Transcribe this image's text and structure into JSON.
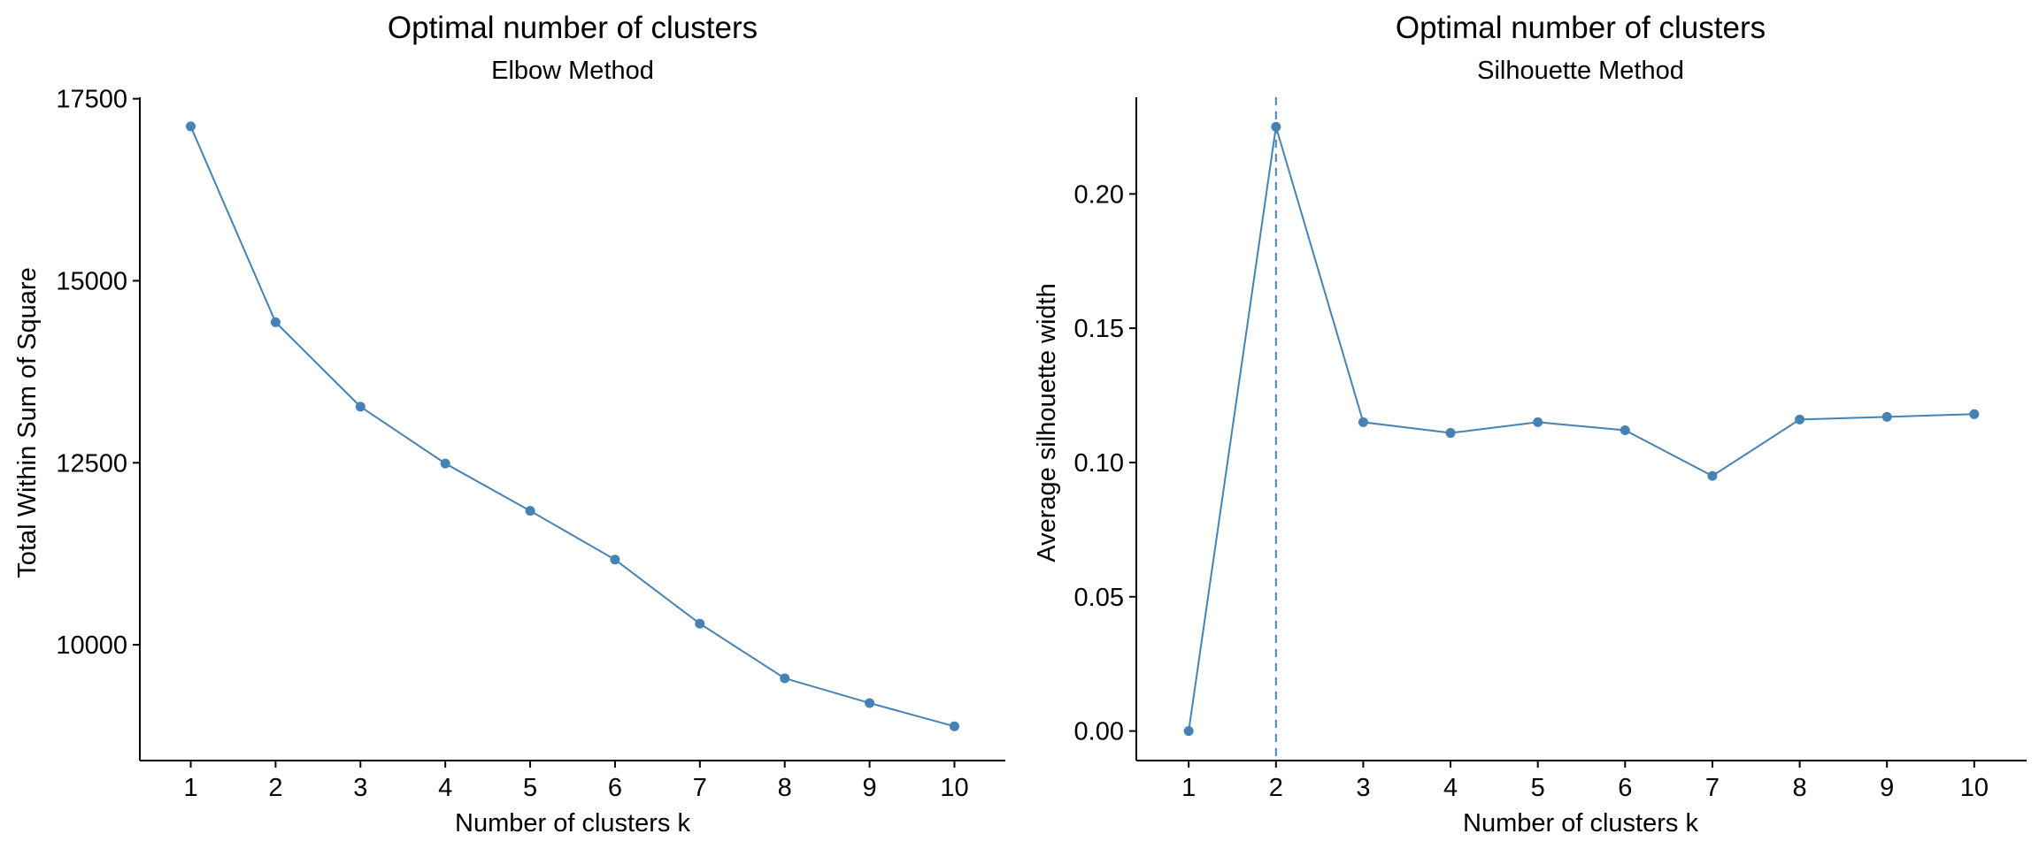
{
  "chart_data": [
    {
      "type": "line",
      "title": "Optimal number of clusters",
      "subtitle": "Elbow Method",
      "xlabel": "Number of clusters k",
      "ylabel": "Total Within Sum of Square",
      "x": [
        1,
        2,
        3,
        4,
        5,
        6,
        7,
        8,
        9,
        10
      ],
      "values": [
        17120,
        14430,
        13270,
        12490,
        11840,
        11170,
        10290,
        9540,
        9200,
        8880
      ],
      "xlim": [
        0.4,
        10.6
      ],
      "ylim": [
        8410,
        17520
      ],
      "xticks": [
        "1",
        "2",
        "3",
        "4",
        "5",
        "6",
        "7",
        "8",
        "9",
        "10"
      ],
      "yticks": [
        10000,
        12500,
        15000,
        17500
      ],
      "ytick_labels": [
        "10000",
        "12500",
        "15000",
        "17500"
      ],
      "color": "#4682B4",
      "grid": false,
      "legend": "none"
    },
    {
      "type": "line",
      "title": "Optimal number of clusters",
      "subtitle": "Silhouette Method",
      "xlabel": "Number of clusters k",
      "ylabel": "Average silhouette width",
      "x": [
        1,
        2,
        3,
        4,
        5,
        6,
        7,
        8,
        9,
        10
      ],
      "values": [
        0.0,
        0.225,
        0.115,
        0.111,
        0.115,
        0.112,
        0.095,
        0.116,
        0.117,
        0.118
      ],
      "xlim": [
        0.4,
        10.6
      ],
      "ylim": [
        -0.011,
        0.236
      ],
      "xticks": [
        "1",
        "2",
        "3",
        "4",
        "5",
        "6",
        "7",
        "8",
        "9",
        "10"
      ],
      "yticks": [
        0.0,
        0.05,
        0.1,
        0.15,
        0.2
      ],
      "ytick_labels": [
        "0.00",
        "0.05",
        "0.10",
        "0.15",
        "0.20"
      ],
      "vline_x": 2,
      "color": "#4682B4",
      "grid": false,
      "legend": "none"
    }
  ]
}
